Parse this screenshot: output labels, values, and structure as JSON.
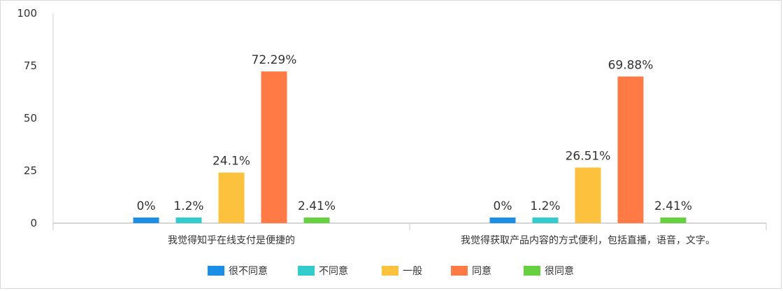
{
  "chart_data": {
    "type": "bar",
    "categories": [
      "我觉得知乎在线支付是便捷的",
      "我觉得获取产品内容的方式便利，包括直播，语音，文字。"
    ],
    "series": [
      {
        "name": "很不同意",
        "color": "#1a8fe8",
        "values": [
          0,
          0
        ],
        "labels": [
          "0%",
          "0%"
        ]
      },
      {
        "name": "不同意",
        "color": "#33cccc",
        "values": [
          1.2,
          1.2
        ],
        "labels": [
          "1.2%",
          "1.2%"
        ]
      },
      {
        "name": "一般",
        "color": "#fcc23d",
        "values": [
          24.1,
          26.51
        ],
        "labels": [
          "24.1%",
          "26.51%"
        ]
      },
      {
        "name": "同意",
        "color": "#ff7a45",
        "values": [
          72.29,
          69.88
        ],
        "labels": [
          "72.29%",
          "69.88%"
        ]
      },
      {
        "name": "很同意",
        "color": "#66d13f",
        "values": [
          2.41,
          2.41
        ],
        "labels": [
          "2.41%",
          "2.41%"
        ]
      }
    ],
    "yticks": [
      0,
      25,
      50,
      75,
      100
    ],
    "ylim": [
      0,
      100
    ],
    "xlabel": "",
    "ylabel": "",
    "legend_position": "bottom",
    "grid": false
  }
}
